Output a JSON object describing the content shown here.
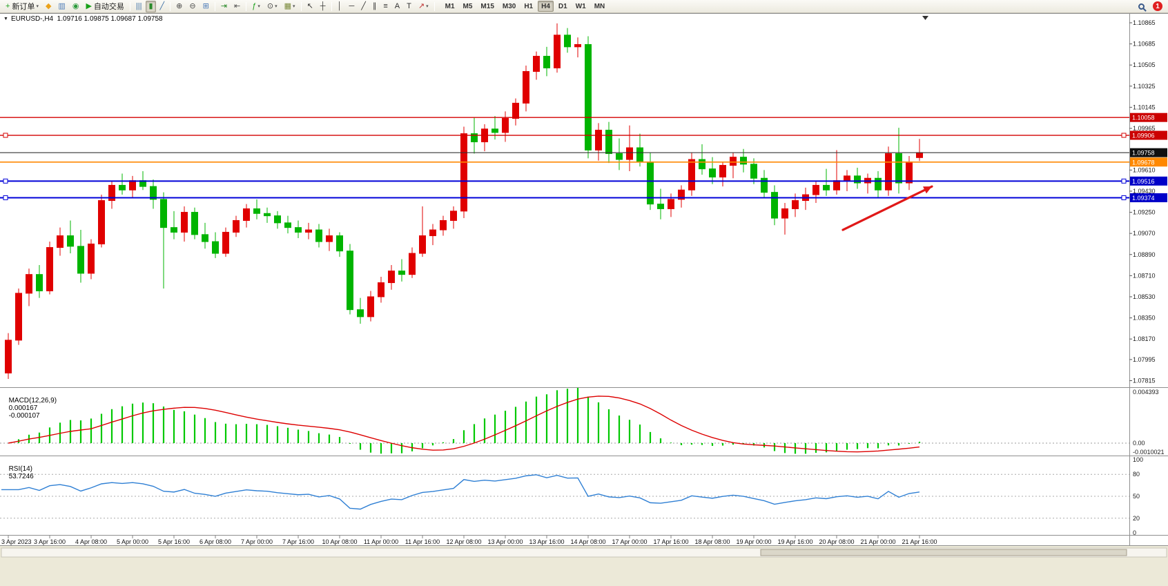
{
  "icons": {
    "chart_marker": "▼"
  },
  "toolbar": {
    "buttons": [
      {
        "name": "new-order-button",
        "icon": "new-order-icon",
        "glyph": "+",
        "color": "#18a018",
        "label": "新订单",
        "caret": true
      },
      {
        "name": "metaeditor-button",
        "icon": "compass-icon",
        "glyph": "◆",
        "color": "#eba21a"
      },
      {
        "name": "market-button",
        "icon": "profile-chart-icon",
        "glyph": "▥",
        "color": "#4a7ab8"
      },
      {
        "name": "community-button",
        "icon": "globe-icon",
        "glyph": "◉",
        "color": "#2a9a3a"
      },
      {
        "name": "autotrade-button",
        "icon": "play-icon",
        "glyph": "▶",
        "color": "#18a018",
        "label": "自动交易"
      },
      {
        "sep": true
      },
      {
        "name": "bar-chart-button",
        "icon": "ohlc-bars-icon",
        "glyph": "|||",
        "color": "#3a6ea5"
      },
      {
        "name": "candlestick-button",
        "icon": "candlestick-icon",
        "glyph": "▮",
        "color": "#2a8a2a",
        "active": true
      },
      {
        "name": "line-chart-button",
        "icon": "line-chart-icon",
        "glyph": "╱",
        "color": "#3a6ea5"
      },
      {
        "sep": true
      },
      {
        "name": "zoom-in-button",
        "icon": "zoom-in-icon",
        "glyph": "⊕",
        "color": "#4a4a4a"
      },
      {
        "name": "zoom-out-button",
        "icon": "zoom-out-icon",
        "glyph": "⊖",
        "color": "#4a4a4a"
      },
      {
        "name": "tile-windows-button",
        "icon": "tile-windows-icon",
        "glyph": "⊞",
        "color": "#4a7ab8"
      },
      {
        "sep": true
      },
      {
        "name": "auto-scroll-button",
        "icon": "auto-scroll-icon",
        "glyph": "⇥",
        "color": "#2a8a2a"
      },
      {
        "name": "chart-shift-button",
        "icon": "chart-shift-icon",
        "glyph": "⇤",
        "color": "#555555"
      },
      {
        "sep": true
      },
      {
        "name": "indicators-button",
        "icon": "indicators-icon",
        "glyph": "ƒ",
        "color": "#18a018",
        "caret": true
      },
      {
        "name": "periods-button",
        "icon": "clock-icon",
        "glyph": "⊙",
        "color": "#444444",
        "caret": true
      },
      {
        "name": "templates-button",
        "icon": "template-icon",
        "glyph": "▦",
        "color": "#7a8a3a",
        "caret": true
      },
      {
        "sep": true
      },
      {
        "name": "cursor-button",
        "icon": "cursor-icon",
        "glyph": "↖",
        "color": "#333333"
      },
      {
        "name": "crosshair-button",
        "icon": "crosshair-icon",
        "glyph": "┼",
        "color": "#333333"
      },
      {
        "sep": true
      },
      {
        "name": "vertical-line-button",
        "icon": "vertical-line-icon",
        "glyph": "│",
        "color": "#333333"
      },
      {
        "name": "horizontal-line-button",
        "icon": "horizontal-line-icon",
        "glyph": "─",
        "color": "#333333"
      },
      {
        "name": "trendline-button",
        "icon": "trendline-icon",
        "glyph": "╱",
        "color": "#333333"
      },
      {
        "name": "channel-button",
        "icon": "channel-icon",
        "glyph": "∥",
        "color": "#333333"
      },
      {
        "name": "fibonacci-button",
        "icon": "fibonacci-icon",
        "glyph": "≡",
        "color": "#333333"
      },
      {
        "name": "text-button",
        "icon": "text-icon",
        "glyph": "A",
        "color": "#333333"
      },
      {
        "name": "label-button",
        "icon": "text-label-icon",
        "glyph": "T",
        "color": "#333333"
      },
      {
        "name": "arrows-button",
        "icon": "arrow-icon",
        "glyph": "↗",
        "color": "#c03030",
        "caret": true
      },
      {
        "sep": true
      }
    ],
    "timeframes": [
      "M1",
      "M5",
      "M15",
      "M30",
      "H1",
      "H4",
      "D1",
      "W1",
      "MN"
    ],
    "active_timeframe": "H4",
    "notification_badge": "1"
  },
  "chart_data": {
    "type": "candlestick+macd+rsi",
    "symbol": "EURUSD-",
    "timeframe": "H4",
    "title": "EURUSD-,H4  1.09716 1.09875 1.09687 1.09758",
    "last_ohlc": {
      "open": "1.09716",
      "high": "1.09875",
      "low": "1.09687",
      "close": "1.09758"
    },
    "up_color": "#e00000",
    "down_color": "#00b400",
    "background": "#ffffff",
    "y_axis": {
      "top_price": 1.10865,
      "bottom_price": 1.07815
    },
    "price_ticks": [
      "1.10865",
      "1.10685",
      "1.10505",
      "1.10325",
      "1.10145",
      "1.09965",
      "1.09610",
      "1.09430",
      "1.09250",
      "1.09070",
      "1.08890",
      "1.08710",
      "1.08530",
      "1.08350",
      "1.08170",
      "1.07995",
      "1.07815"
    ],
    "time_labels": [
      "3 Apr 2023",
      "3 Apr 16:00",
      "4 Apr 08:00",
      "5 Apr 00:00",
      "5 Apr 16:00",
      "6 Apr 08:00",
      "7 Apr 00:00",
      "7 Apr 16:00",
      "10 Apr 08:00",
      "11 Apr 00:00",
      "11 Apr 16:00",
      "12 Apr 08:00",
      "13 Apr 00:00",
      "13 Apr 16:00",
      "14 Apr 08:00",
      "17 Apr 00:00",
      "17 Apr 16:00",
      "18 Apr 08:00",
      "19 Apr 00:00",
      "19 Apr 16:00",
      "20 Apr 08:00",
      "21 Apr 00:00",
      "21 Apr 16:00"
    ],
    "x_label_step": 4,
    "hlines": [
      {
        "name": "resistance-line-1",
        "price": 1.10058,
        "color": "#d40000",
        "width": 1.4,
        "tag": "1.10058",
        "tag_bg": "#cc0000"
      },
      {
        "name": "resistance-line-2",
        "price": 1.09906,
        "color": "#d40000",
        "width": 1.4,
        "tag": "1.09906",
        "tag_bg": "#cc0000",
        "handles": true
      },
      {
        "name": "bid-price-line",
        "price": 1.09758,
        "color": "#333333",
        "width": 1.2,
        "tag": "1.09758",
        "tag_bg": "#101010"
      },
      {
        "name": "pivot-line-orange",
        "price": 1.09678,
        "color": "#ff8800",
        "width": 1.6,
        "tag": "1.09678",
        "tag_bg": "#ff8800"
      },
      {
        "name": "support-line-1",
        "price": 1.09516,
        "color": "#0000d8",
        "width": 2,
        "tag": "1.09516",
        "tag_bg": "#0000c8",
        "handles": true
      },
      {
        "name": "support-line-2",
        "price": 1.09374,
        "color": "#0000d8",
        "width": 2,
        "tag": "1.09374",
        "tag_bg": "#0000c8",
        "handles": true
      }
    ],
    "arrow_annotation": {
      "color": "#e01818",
      "width": 3.2,
      "from": {
        "bar": 80.6,
        "price": 1.091
      },
      "to": {
        "bar": 89.2,
        "price": 1.0947
      }
    },
    "candles": [
      [
        1.0788,
        1.0822,
        1.0783,
        1.0816
      ],
      [
        1.0816,
        1.086,
        1.0812,
        1.0856
      ],
      [
        1.0856,
        1.0877,
        1.0845,
        1.0872
      ],
      [
        1.0872,
        1.088,
        1.0852,
        1.0858
      ],
      [
        1.0858,
        1.09,
        1.0855,
        1.0895
      ],
      [
        1.0895,
        1.0912,
        1.0888,
        1.0905
      ],
      [
        1.0905,
        1.0918,
        1.089,
        1.0896
      ],
      [
        1.0896,
        1.091,
        1.0865,
        1.0873
      ],
      [
        1.0873,
        1.0902,
        1.0868,
        1.0898
      ],
      [
        1.0898,
        1.094,
        1.0895,
        1.0935
      ],
      [
        1.0935,
        1.0952,
        1.0928,
        1.0948
      ],
      [
        1.0948,
        1.0958,
        1.094,
        1.0944
      ],
      [
        1.0944,
        1.0956,
        1.0938,
        1.0952
      ],
      [
        1.0952,
        1.096,
        1.0944,
        1.0947
      ],
      [
        1.0947,
        1.0953,
        1.0928,
        1.0936
      ],
      [
        1.0936,
        1.0942,
        1.086,
        1.0912
      ],
      [
        1.0912,
        1.0926,
        1.0902,
        1.0908
      ],
      [
        1.0908,
        1.093,
        1.09,
        1.0925
      ],
      [
        1.0925,
        1.0929,
        1.0902,
        1.0906
      ],
      [
        1.0906,
        1.0916,
        1.0894,
        1.09
      ],
      [
        1.09,
        1.0908,
        1.0886,
        1.089
      ],
      [
        1.089,
        1.0912,
        1.0887,
        1.0908
      ],
      [
        1.0908,
        1.0922,
        1.0904,
        1.0918
      ],
      [
        1.0918,
        1.0932,
        1.0912,
        1.0928
      ],
      [
        1.0928,
        1.0936,
        1.0919,
        1.0924
      ],
      [
        1.0924,
        1.0929,
        1.0916,
        1.0922
      ],
      [
        1.0922,
        1.0926,
        1.0911,
        1.0916
      ],
      [
        1.0916,
        1.0922,
        1.0907,
        1.0912
      ],
      [
        1.0912,
        1.0918,
        1.0903,
        1.0908
      ],
      [
        1.0908,
        1.0916,
        1.0902,
        1.091
      ],
      [
        1.091,
        1.0915,
        1.0895,
        1.09
      ],
      [
        1.09,
        1.0911,
        1.0892,
        1.0905
      ],
      [
        1.0905,
        1.0908,
        1.0887,
        1.0892
      ],
      [
        1.0892,
        1.0898,
        1.0838,
        1.0842
      ],
      [
        1.0842,
        1.0852,
        1.083,
        1.0836
      ],
      [
        1.0836,
        1.0858,
        1.0832,
        1.0853
      ],
      [
        1.0853,
        1.087,
        1.0848,
        1.0865
      ],
      [
        1.0865,
        1.088,
        1.0859,
        1.0875
      ],
      [
        1.0875,
        1.0885,
        1.0866,
        1.0872
      ],
      [
        1.0872,
        1.0895,
        1.0869,
        1.089
      ],
      [
        1.089,
        1.093,
        1.0887,
        1.0905
      ],
      [
        1.0905,
        1.0915,
        1.0897,
        1.091
      ],
      [
        1.091,
        1.0922,
        1.0905,
        1.0918
      ],
      [
        1.0918,
        1.093,
        1.0911,
        1.0926
      ],
      [
        1.0926,
        1.0998,
        1.092,
        1.0992
      ],
      [
        1.0992,
        1.1006,
        1.0975,
        1.0985
      ],
      [
        1.0985,
        1.1,
        1.0977,
        1.0996
      ],
      [
        1.0996,
        1.1007,
        1.0987,
        1.0993
      ],
      [
        1.0993,
        1.1011,
        1.0985,
        1.1005
      ],
      [
        1.1005,
        1.1022,
        1.0999,
        1.1018
      ],
      [
        1.1018,
        1.105,
        1.1011,
        1.1045
      ],
      [
        1.1045,
        1.1062,
        1.1038,
        1.1058
      ],
      [
        1.1058,
        1.1066,
        1.1041,
        1.1048
      ],
      [
        1.1048,
        1.1086,
        1.1044,
        1.1076
      ],
      [
        1.1076,
        1.1082,
        1.1061,
        1.1066
      ],
      [
        1.1066,
        1.1074,
        1.1057,
        1.1068
      ],
      [
        1.1068,
        1.1075,
        1.0971,
        1.0978
      ],
      [
        1.0978,
        1.1001,
        1.0969,
        1.0995
      ],
      [
        1.0995,
        1.1002,
        1.0967,
        1.0975
      ],
      [
        1.0975,
        1.0988,
        1.0961,
        1.097
      ],
      [
        1.097,
        1.0999,
        1.096,
        1.098
      ],
      [
        1.098,
        1.0992,
        1.0964,
        1.0968
      ],
      [
        1.0968,
        1.0976,
        1.0927,
        1.0932
      ],
      [
        1.0932,
        1.0945,
        1.0919,
        1.0928
      ],
      [
        1.0928,
        1.0941,
        1.0921,
        1.0936
      ],
      [
        1.0936,
        1.0948,
        1.0929,
        1.0944
      ],
      [
        1.0944,
        1.0976,
        1.0939,
        1.097
      ],
      [
        1.097,
        1.0983,
        1.0957,
        1.0962
      ],
      [
        1.0962,
        1.0972,
        1.0949,
        1.0955
      ],
      [
        1.0955,
        1.0968,
        1.0947,
        1.0965
      ],
      [
        1.0965,
        1.0976,
        1.0954,
        1.0972
      ],
      [
        1.0972,
        1.0979,
        1.0959,
        1.0966
      ],
      [
        1.0966,
        1.0971,
        1.0949,
        1.0954
      ],
      [
        1.0954,
        1.0961,
        1.0937,
        1.0942
      ],
      [
        1.0942,
        1.0948,
        1.0914,
        1.092
      ],
      [
        1.092,
        1.0933,
        1.0906,
        1.0928
      ],
      [
        1.0928,
        1.0941,
        1.0921,
        1.0935
      ],
      [
        1.0935,
        1.0946,
        1.0927,
        1.094
      ],
      [
        1.094,
        1.0952,
        1.0933,
        1.0948
      ],
      [
        1.0948,
        1.0962,
        1.0939,
        1.0944
      ],
      [
        1.0944,
        1.0978,
        1.094,
        1.0952
      ],
      [
        1.0952,
        1.0961,
        1.0943,
        1.0956
      ],
      [
        1.0956,
        1.0963,
        1.0945,
        1.095
      ],
      [
        1.095,
        1.0958,
        1.0941,
        1.0954
      ],
      [
        1.0954,
        1.096,
        1.0937,
        1.0944
      ],
      [
        1.0944,
        1.0981,
        1.0939,
        1.0975
      ],
      [
        1.0975,
        1.0997,
        1.0941,
        1.095
      ],
      [
        1.095,
        1.0973,
        1.0944,
        1.0968
      ],
      [
        1.09716,
        1.09875,
        1.09687,
        1.09758
      ]
    ],
    "macd": {
      "label": "MACD(12,26,9)",
      "value_main": "0.000167",
      "value_signal": "-0.000107",
      "fast": 12,
      "slow": 26,
      "signal": 9,
      "max_label": "0.004393",
      "zero_label": "0.00",
      "min_label": "-0.0010021",
      "hist_color": "#00c800",
      "signal_color": "#dd0000"
    },
    "rsi": {
      "label": "RSI(14)",
      "value": "53.7246",
      "period": 14,
      "levels": [
        100,
        80,
        50,
        20,
        0
      ],
      "dashed_levels": [
        80,
        50,
        20
      ],
      "line_color": "#2e7fd4"
    }
  }
}
